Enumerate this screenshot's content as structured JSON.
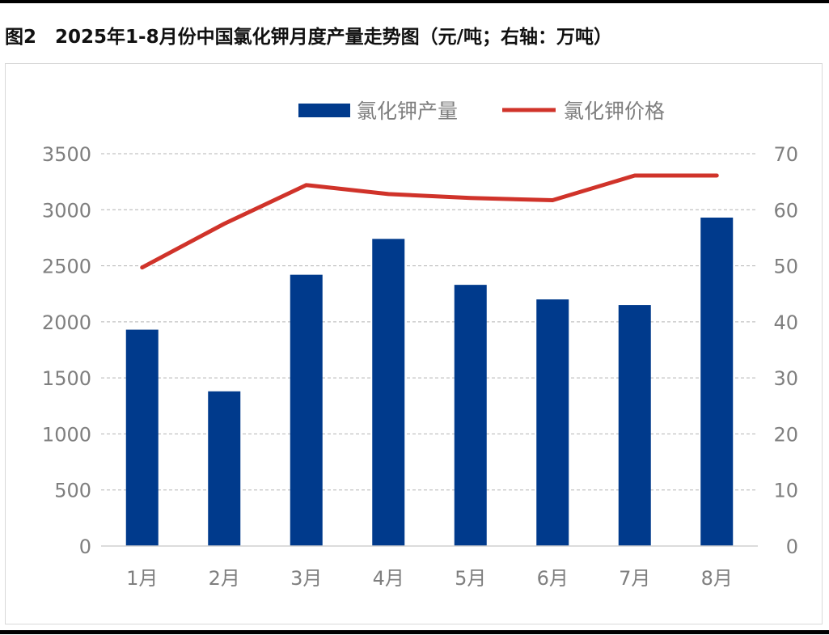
{
  "figure": {
    "title": "图2　2025年1-8月份中国氯化钾月度产量走势图（元/吨；右轴：万吨）"
  },
  "chart_data": {
    "type": "bar+line",
    "title": "图2　2025年1-8月份中国氯化钾月度产量走势图（元/吨；右轴：万吨）",
    "categories": [
      "1月",
      "2月",
      "3月",
      "4月",
      "5月",
      "6月",
      "7月",
      "8月"
    ],
    "series": [
      {
        "name": "氯化钾产量",
        "type": "bar",
        "axis": "left",
        "color": "#003a8c",
        "values": [
          1930,
          1380,
          2420,
          2740,
          2330,
          2200,
          2150,
          2930
        ]
      },
      {
        "name": "氯化钾价格",
        "type": "line",
        "axis": "right",
        "color": "#d0332a",
        "values": [
          49.7,
          57.5,
          64.4,
          62.8,
          62.1,
          61.7,
          66.1,
          66.1
        ]
      }
    ],
    "left_axis": {
      "min": 0,
      "max": 3500,
      "step": 500,
      "ticks": [
        "0",
        "500",
        "1000",
        "1500",
        "2000",
        "2500",
        "3000",
        "3500"
      ]
    },
    "right_axis": {
      "min": 0,
      "max": 70,
      "step": 10,
      "ticks": [
        "0",
        "10",
        "20",
        "30",
        "40",
        "50",
        "60",
        "70"
      ]
    },
    "grid": true,
    "legend": "top-center",
    "legend_labels": [
      "氯化钾产量",
      "氯化钾价格"
    ]
  }
}
